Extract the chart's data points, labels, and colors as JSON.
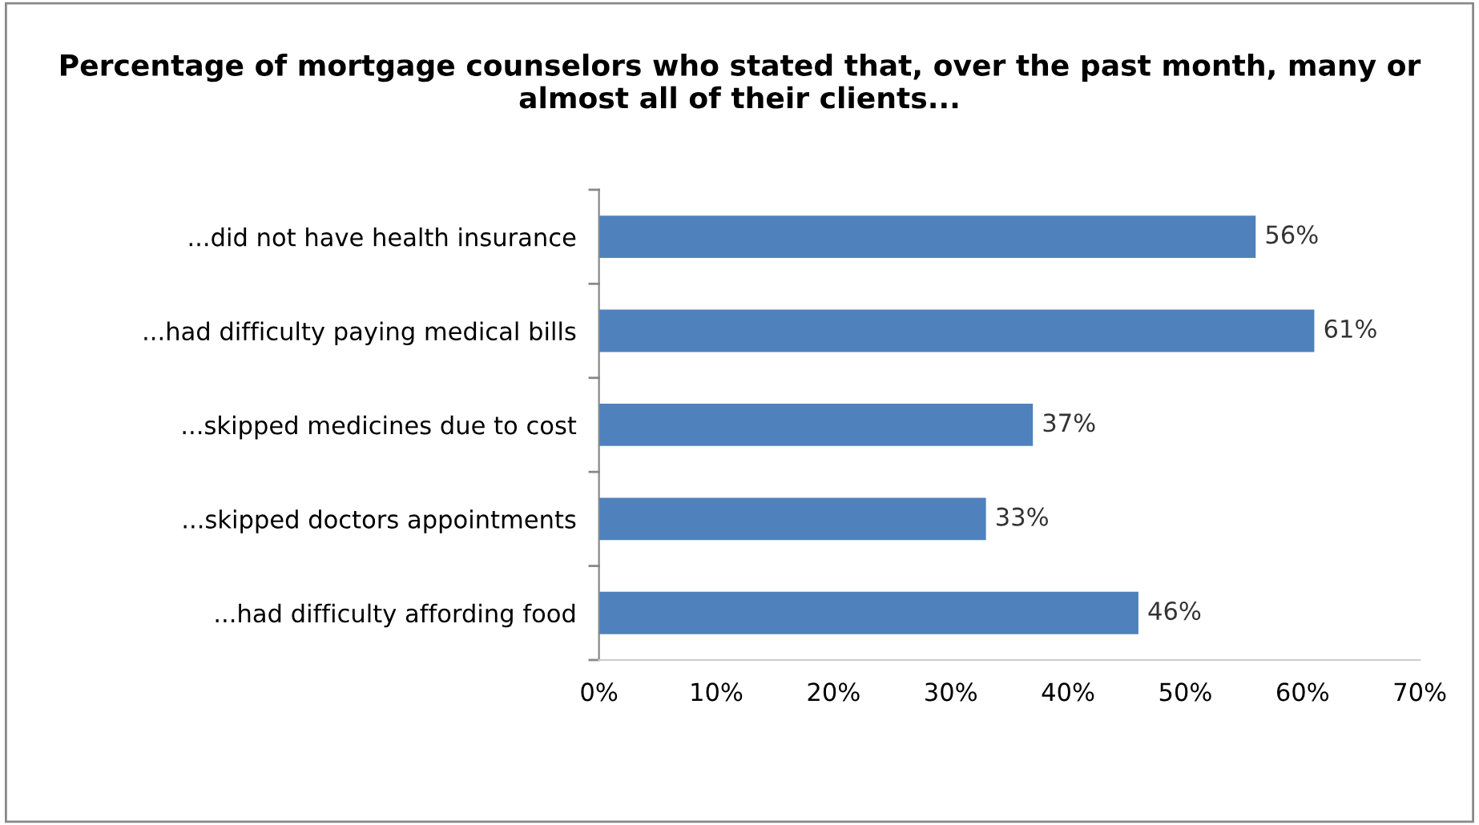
{
  "chart_data": {
    "type": "bar",
    "orientation": "horizontal",
    "title": "Percentage of mortgage counselors who stated that, over the past month, many or almost all of their clients...",
    "categories": [
      "...did not have health insurance",
      "...had difficulty paying medical bills",
      "...skipped medicines due to cost",
      "...skipped doctors appointments",
      "...had difficulty affording food"
    ],
    "values": [
      56,
      61,
      37,
      33,
      46
    ],
    "value_labels": [
      "56%",
      "61%",
      "37%",
      "33%",
      "46%"
    ],
    "color": "#4f81bd",
    "xlim": [
      0,
      70
    ],
    "xticks": [
      {
        "value": 0,
        "label": "0%"
      },
      {
        "value": 10,
        "label": "10%"
      },
      {
        "value": 20,
        "label": "20%"
      },
      {
        "value": 30,
        "label": "30%"
      },
      {
        "value": 40,
        "label": "40%"
      },
      {
        "value": 50,
        "label": "50%"
      },
      {
        "value": 60,
        "label": "60%"
      },
      {
        "value": 70,
        "label": "70%"
      }
    ],
    "grid": false,
    "legend": false
  }
}
